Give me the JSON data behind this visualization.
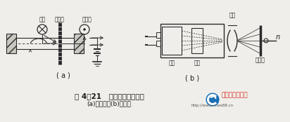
{
  "bg_color": "#f0eeea",
  "title_text": "图 4－21   光电式测速传感器",
  "subtitle_text": "(a)透光式；(b)反射式",
  "label_a": "( a )",
  "label_b": "( b )",
  "label_guangyuan": "光源",
  "label_zhelight": "過光盘",
  "label_guangdianguan": "光电管",
  "label_toujing1": "透镜",
  "label_toujing2": "透镜",
  "label_toujing3": "透镜",
  "label_fanshe": "反射面",
  "logo_text": "中国电气产业网",
  "logo_url": "http://www.cnee88.cn",
  "line_color": "#2a2a2a",
  "text_color": "#1a1a1a",
  "logo_color": "#d42b1e",
  "hatch_color": "#888888"
}
